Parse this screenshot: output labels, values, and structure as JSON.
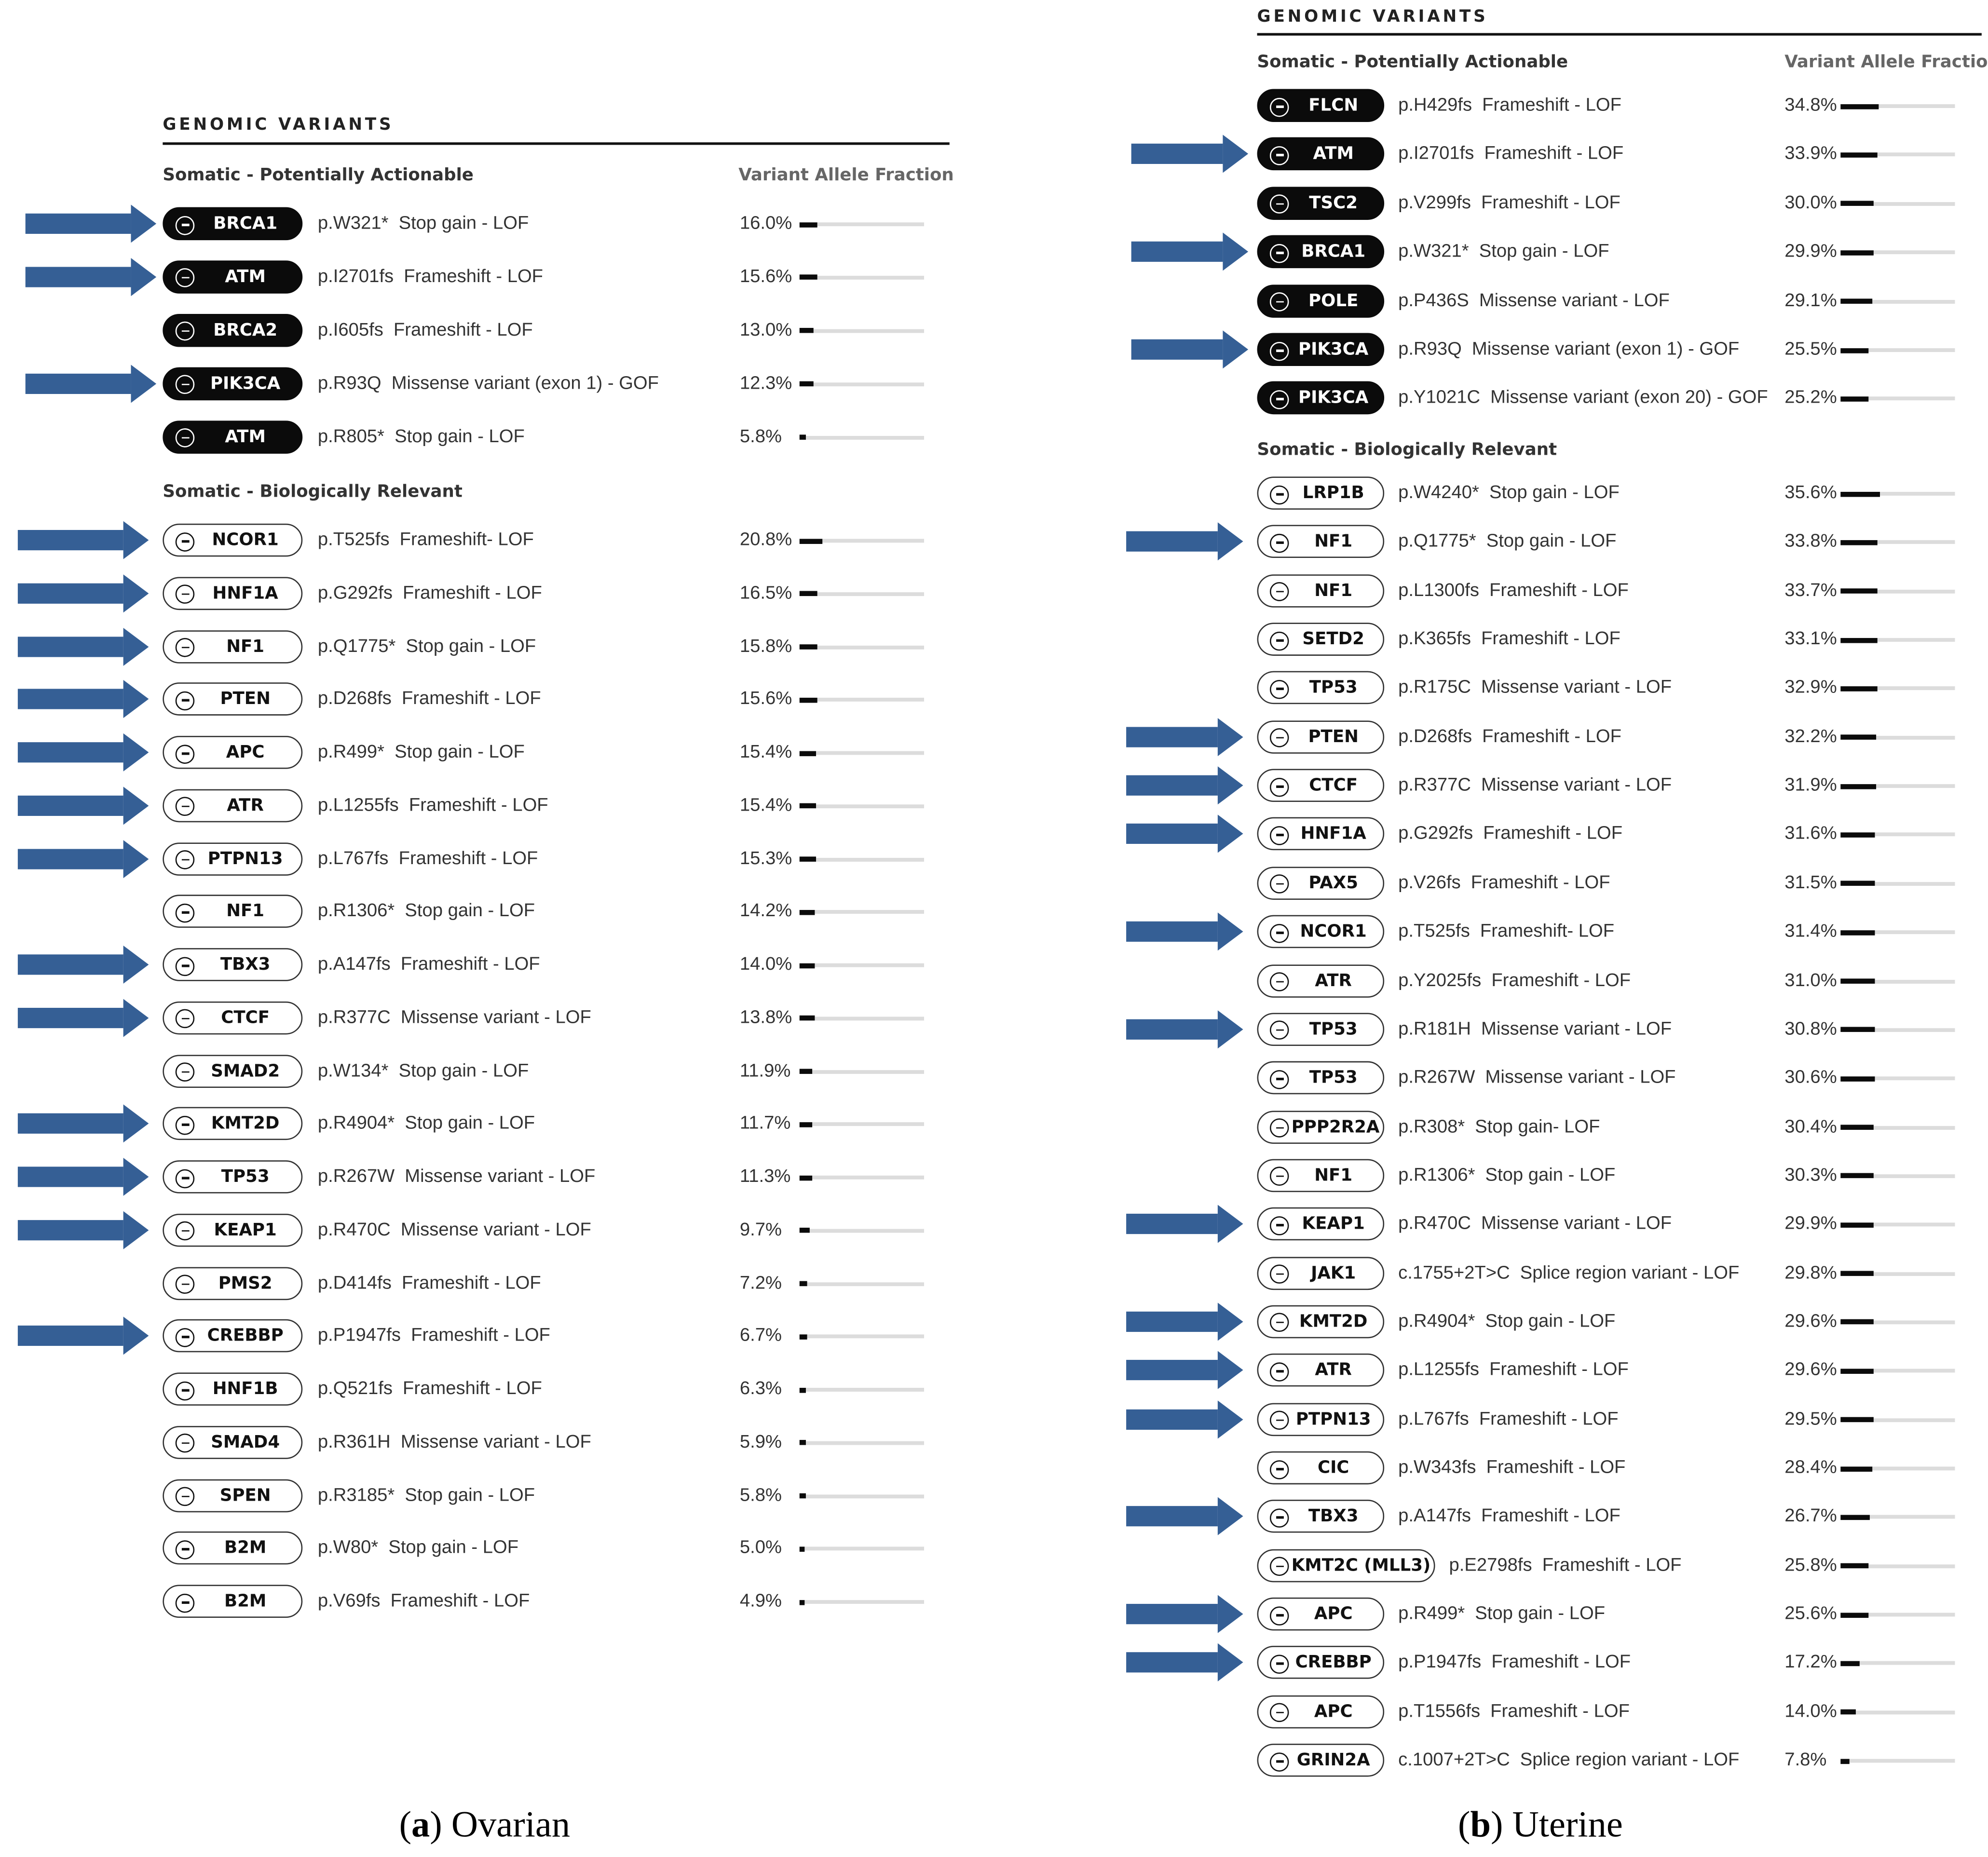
{
  "colors": {
    "arrow": "#355f95",
    "pill_dark": "#0b0b0b",
    "bar": "#0b0b0b",
    "track": "#dcdcdc"
  },
  "icons": {
    "pill_icon": "minus-circle-icon",
    "arrow_icon": "right-arrow-icon"
  },
  "ovarian": {
    "heading": "GENOMIC VARIANTS",
    "vaf_header": "Variant Allele Fraction",
    "caption_letter": "a",
    "caption_text": "Ovarian",
    "actionable": {
      "title": "Somatic - Potentially Actionable",
      "rows": [
        {
          "gene": "BRCA1",
          "mutation": "p.W321*",
          "effect": "Stop gain - LOF",
          "vaf": "16.0%",
          "vaf_value": 16.0,
          "arrow": true
        },
        {
          "gene": "ATM",
          "mutation": "p.I2701fs",
          "effect": "Frameshift - LOF",
          "vaf": "15.6%",
          "vaf_value": 15.6,
          "arrow": true
        },
        {
          "gene": "BRCA2",
          "mutation": "p.I605fs",
          "effect": "Frameshift - LOF",
          "vaf": "13.0%",
          "vaf_value": 13.0,
          "arrow": false
        },
        {
          "gene": "PIK3CA",
          "mutation": "p.R93Q",
          "effect": "Missense variant (exon 1) - GOF",
          "vaf": "12.3%",
          "vaf_value": 12.3,
          "arrow": true
        },
        {
          "gene": "ATM",
          "mutation": "p.R805*",
          "effect": "Stop gain - LOF",
          "vaf": "5.8%",
          "vaf_value": 5.8,
          "arrow": false
        }
      ]
    },
    "relevant": {
      "title": "Somatic - Biologically Relevant",
      "rows": [
        {
          "gene": "NCOR1",
          "mutation": "p.T525fs",
          "effect": "Frameshift- LOF",
          "vaf": "20.8%",
          "vaf_value": 20.8,
          "arrow": true
        },
        {
          "gene": "HNF1A",
          "mutation": "p.G292fs",
          "effect": "Frameshift - LOF",
          "vaf": "16.5%",
          "vaf_value": 16.5,
          "arrow": true
        },
        {
          "gene": "NF1",
          "mutation": "p.Q1775*",
          "effect": "Stop gain - LOF",
          "vaf": "15.8%",
          "vaf_value": 15.8,
          "arrow": true
        },
        {
          "gene": "PTEN",
          "mutation": "p.D268fs",
          "effect": "Frameshift - LOF",
          "vaf": "15.6%",
          "vaf_value": 15.6,
          "arrow": true
        },
        {
          "gene": "APC",
          "mutation": "p.R499*",
          "effect": "Stop gain - LOF",
          "vaf": "15.4%",
          "vaf_value": 15.4,
          "arrow": true
        },
        {
          "gene": "ATR",
          "mutation": "p.L1255fs",
          "effect": "Frameshift - LOF",
          "vaf": "15.4%",
          "vaf_value": 15.4,
          "arrow": true
        },
        {
          "gene": "PTPN13",
          "mutation": "p.L767fs",
          "effect": "Frameshift - LOF",
          "vaf": "15.3%",
          "vaf_value": 15.3,
          "arrow": true
        },
        {
          "gene": "NF1",
          "mutation": "p.R1306*",
          "effect": "Stop gain - LOF",
          "vaf": "14.2%",
          "vaf_value": 14.2,
          "arrow": false
        },
        {
          "gene": "TBX3",
          "mutation": "p.A147fs",
          "effect": "Frameshift - LOF",
          "vaf": "14.0%",
          "vaf_value": 14.0,
          "arrow": true
        },
        {
          "gene": "CTCF",
          "mutation": "p.R377C",
          "effect": "Missense variant - LOF",
          "vaf": "13.8%",
          "vaf_value": 13.8,
          "arrow": true
        },
        {
          "gene": "SMAD2",
          "mutation": "p.W134*",
          "effect": "Stop gain - LOF",
          "vaf": "11.9%",
          "vaf_value": 11.9,
          "arrow": false
        },
        {
          "gene": "KMT2D",
          "mutation": "p.R4904*",
          "effect": "Stop gain - LOF",
          "vaf": "11.7%",
          "vaf_value": 11.7,
          "arrow": true
        },
        {
          "gene": "TP53",
          "mutation": "p.R267W",
          "effect": "Missense variant - LOF",
          "vaf": "11.3%",
          "vaf_value": 11.3,
          "arrow": true
        },
        {
          "gene": "KEAP1",
          "mutation": "p.R470C",
          "effect": "Missense variant - LOF",
          "vaf": "9.7%",
          "vaf_value": 9.7,
          "arrow": true
        },
        {
          "gene": "PMS2",
          "mutation": "p.D414fs",
          "effect": "Frameshift - LOF",
          "vaf": "7.2%",
          "vaf_value": 7.2,
          "arrow": false
        },
        {
          "gene": "CREBBP",
          "mutation": "p.P1947fs",
          "effect": "Frameshift - LOF",
          "vaf": "6.7%",
          "vaf_value": 6.7,
          "arrow": true
        },
        {
          "gene": "HNF1B",
          "mutation": "p.Q521fs",
          "effect": "Frameshift - LOF",
          "vaf": "6.3%",
          "vaf_value": 6.3,
          "arrow": false
        },
        {
          "gene": "SMAD4",
          "mutation": "p.R361H",
          "effect": "Missense variant - LOF",
          "vaf": "5.9%",
          "vaf_value": 5.9,
          "arrow": false
        },
        {
          "gene": "SPEN",
          "mutation": "p.R3185*",
          "effect": "Stop gain - LOF",
          "vaf": "5.8%",
          "vaf_value": 5.8,
          "arrow": false
        },
        {
          "gene": "B2M",
          "mutation": "p.W80*",
          "effect": "Stop gain - LOF",
          "vaf": "5.0%",
          "vaf_value": 5.0,
          "arrow": false
        },
        {
          "gene": "B2M",
          "mutation": "p.V69fs",
          "effect": "Frameshift - LOF",
          "vaf": "4.9%",
          "vaf_value": 4.9,
          "arrow": false
        }
      ]
    }
  },
  "uterine": {
    "heading": "GENOMIC VARIANTS",
    "vaf_header": "Variant Allele Fraction",
    "caption_letter": "b",
    "caption_text": "Uterine",
    "actionable": {
      "title": "Somatic - Potentially Actionable",
      "rows": [
        {
          "gene": "FLCN",
          "mutation": "p.H429fs",
          "effect": "Frameshift - LOF",
          "vaf": "34.8%",
          "vaf_value": 34.8,
          "arrow": false
        },
        {
          "gene": "ATM",
          "mutation": "p.I2701fs",
          "effect": "Frameshift - LOF",
          "vaf": "33.9%",
          "vaf_value": 33.9,
          "arrow": true
        },
        {
          "gene": "TSC2",
          "mutation": "p.V299fs",
          "effect": "Frameshift - LOF",
          "vaf": "30.0%",
          "vaf_value": 30.0,
          "arrow": false
        },
        {
          "gene": "BRCA1",
          "mutation": "p.W321*",
          "effect": "Stop gain - LOF",
          "vaf": "29.9%",
          "vaf_value": 29.9,
          "arrow": true
        },
        {
          "gene": "POLE",
          "mutation": "p.P436S",
          "effect": "Missense variant - LOF",
          "vaf": "29.1%",
          "vaf_value": 29.1,
          "arrow": false
        },
        {
          "gene": "PIK3CA",
          "mutation": "p.R93Q",
          "effect": "Missense variant (exon 1) - GOF",
          "vaf": "25.5%",
          "vaf_value": 25.5,
          "arrow": true
        },
        {
          "gene": "PIK3CA",
          "mutation": "p.Y1021C",
          "effect": "Missense variant (exon 20) - GOF",
          "vaf": "25.2%",
          "vaf_value": 25.2,
          "arrow": false
        }
      ]
    },
    "relevant": {
      "title": "Somatic - Biologically Relevant",
      "rows": [
        {
          "gene": "LRP1B",
          "mutation": "p.W4240*",
          "effect": "Stop gain - LOF",
          "vaf": "35.6%",
          "vaf_value": 35.6,
          "arrow": false
        },
        {
          "gene": "NF1",
          "mutation": "p.Q1775*",
          "effect": "Stop gain - LOF",
          "vaf": "33.8%",
          "vaf_value": 33.8,
          "arrow": true
        },
        {
          "gene": "NF1",
          "mutation": "p.L1300fs",
          "effect": "Frameshift - LOF",
          "vaf": "33.7%",
          "vaf_value": 33.7,
          "arrow": false
        },
        {
          "gene": "SETD2",
          "mutation": "p.K365fs",
          "effect": "Frameshift - LOF",
          "vaf": "33.1%",
          "vaf_value": 33.1,
          "arrow": false
        },
        {
          "gene": "TP53",
          "mutation": "p.R175C",
          "effect": "Missense variant - LOF",
          "vaf": "32.9%",
          "vaf_value": 32.9,
          "arrow": false
        },
        {
          "gene": "PTEN",
          "mutation": "p.D268fs",
          "effect": "Frameshift - LOF",
          "vaf": "32.2%",
          "vaf_value": 32.2,
          "arrow": true
        },
        {
          "gene": "CTCF",
          "mutation": "p.R377C",
          "effect": "Missense variant - LOF",
          "vaf": "31.9%",
          "vaf_value": 31.9,
          "arrow": true
        },
        {
          "gene": "HNF1A",
          "mutation": "p.G292fs",
          "effect": "Frameshift - LOF",
          "vaf": "31.6%",
          "vaf_value": 31.6,
          "arrow": true
        },
        {
          "gene": "PAX5",
          "mutation": "p.V26fs",
          "effect": "Frameshift - LOF",
          "vaf": "31.5%",
          "vaf_value": 31.5,
          "arrow": false
        },
        {
          "gene": "NCOR1",
          "mutation": "p.T525fs",
          "effect": "Frameshift- LOF",
          "vaf": "31.4%",
          "vaf_value": 31.4,
          "arrow": true
        },
        {
          "gene": "ATR",
          "mutation": "p.Y2025fs",
          "effect": "Frameshift - LOF",
          "vaf": "31.0%",
          "vaf_value": 31.0,
          "arrow": false
        },
        {
          "gene": "TP53",
          "mutation": "p.R181H",
          "effect": "Missense variant - LOF",
          "vaf": "30.8%",
          "vaf_value": 30.8,
          "arrow": true
        },
        {
          "gene": "TP53",
          "mutation": "p.R267W",
          "effect": "Missense variant - LOF",
          "vaf": "30.6%",
          "vaf_value": 30.6,
          "arrow": false
        },
        {
          "gene": "PPP2R2A",
          "mutation": "p.R308*",
          "effect": "Stop gain- LOF",
          "vaf": "30.4%",
          "vaf_value": 30.4,
          "arrow": false
        },
        {
          "gene": "NF1",
          "mutation": "p.R1306*",
          "effect": "Stop gain - LOF",
          "vaf": "30.3%",
          "vaf_value": 30.3,
          "arrow": false
        },
        {
          "gene": "KEAP1",
          "mutation": "p.R470C",
          "effect": "Missense variant - LOF",
          "vaf": "29.9%",
          "vaf_value": 29.9,
          "arrow": true
        },
        {
          "gene": "JAK1",
          "mutation": "c.1755+2T>C",
          "effect": "Splice region variant - LOF",
          "vaf": "29.8%",
          "vaf_value": 29.8,
          "arrow": false
        },
        {
          "gene": "KMT2D",
          "mutation": "p.R4904*",
          "effect": "Stop gain - LOF",
          "vaf": "29.6%",
          "vaf_value": 29.6,
          "arrow": true
        },
        {
          "gene": "ATR",
          "mutation": "p.L1255fs",
          "effect": "Frameshift - LOF",
          "vaf": "29.6%",
          "vaf_value": 29.6,
          "arrow": true
        },
        {
          "gene": "PTPN13",
          "mutation": "p.L767fs",
          "effect": "Frameshift - LOF",
          "vaf": "29.5%",
          "vaf_value": 29.5,
          "arrow": true
        },
        {
          "gene": "CIC",
          "mutation": "p.W343fs",
          "effect": "Frameshift - LOF",
          "vaf": "28.4%",
          "vaf_value": 28.4,
          "arrow": false
        },
        {
          "gene": "TBX3",
          "mutation": "p.A147fs",
          "effect": "Frameshift - LOF",
          "vaf": "26.7%",
          "vaf_value": 26.7,
          "arrow": true
        },
        {
          "gene": "KMT2C (MLL3)",
          "mutation": "p.E2798fs",
          "effect": "Frameshift - LOF",
          "vaf": "25.8%",
          "vaf_value": 25.8,
          "arrow": false
        },
        {
          "gene": "APC",
          "mutation": "p.R499*",
          "effect": "Stop gain - LOF",
          "vaf": "25.6%",
          "vaf_value": 25.6,
          "arrow": true
        },
        {
          "gene": "CREBBP",
          "mutation": "p.P1947fs",
          "effect": "Frameshift - LOF",
          "vaf": "17.2%",
          "vaf_value": 17.2,
          "arrow": true
        },
        {
          "gene": "APC",
          "mutation": "p.T1556fs",
          "effect": "Frameshift - LOF",
          "vaf": "14.0%",
          "vaf_value": 14.0,
          "arrow": false
        },
        {
          "gene": "GRIN2A",
          "mutation": "c.1007+2T>C",
          "effect": "Splice region variant - LOF",
          "vaf": "7.8%",
          "vaf_value": 7.8,
          "arrow": false
        }
      ]
    }
  }
}
